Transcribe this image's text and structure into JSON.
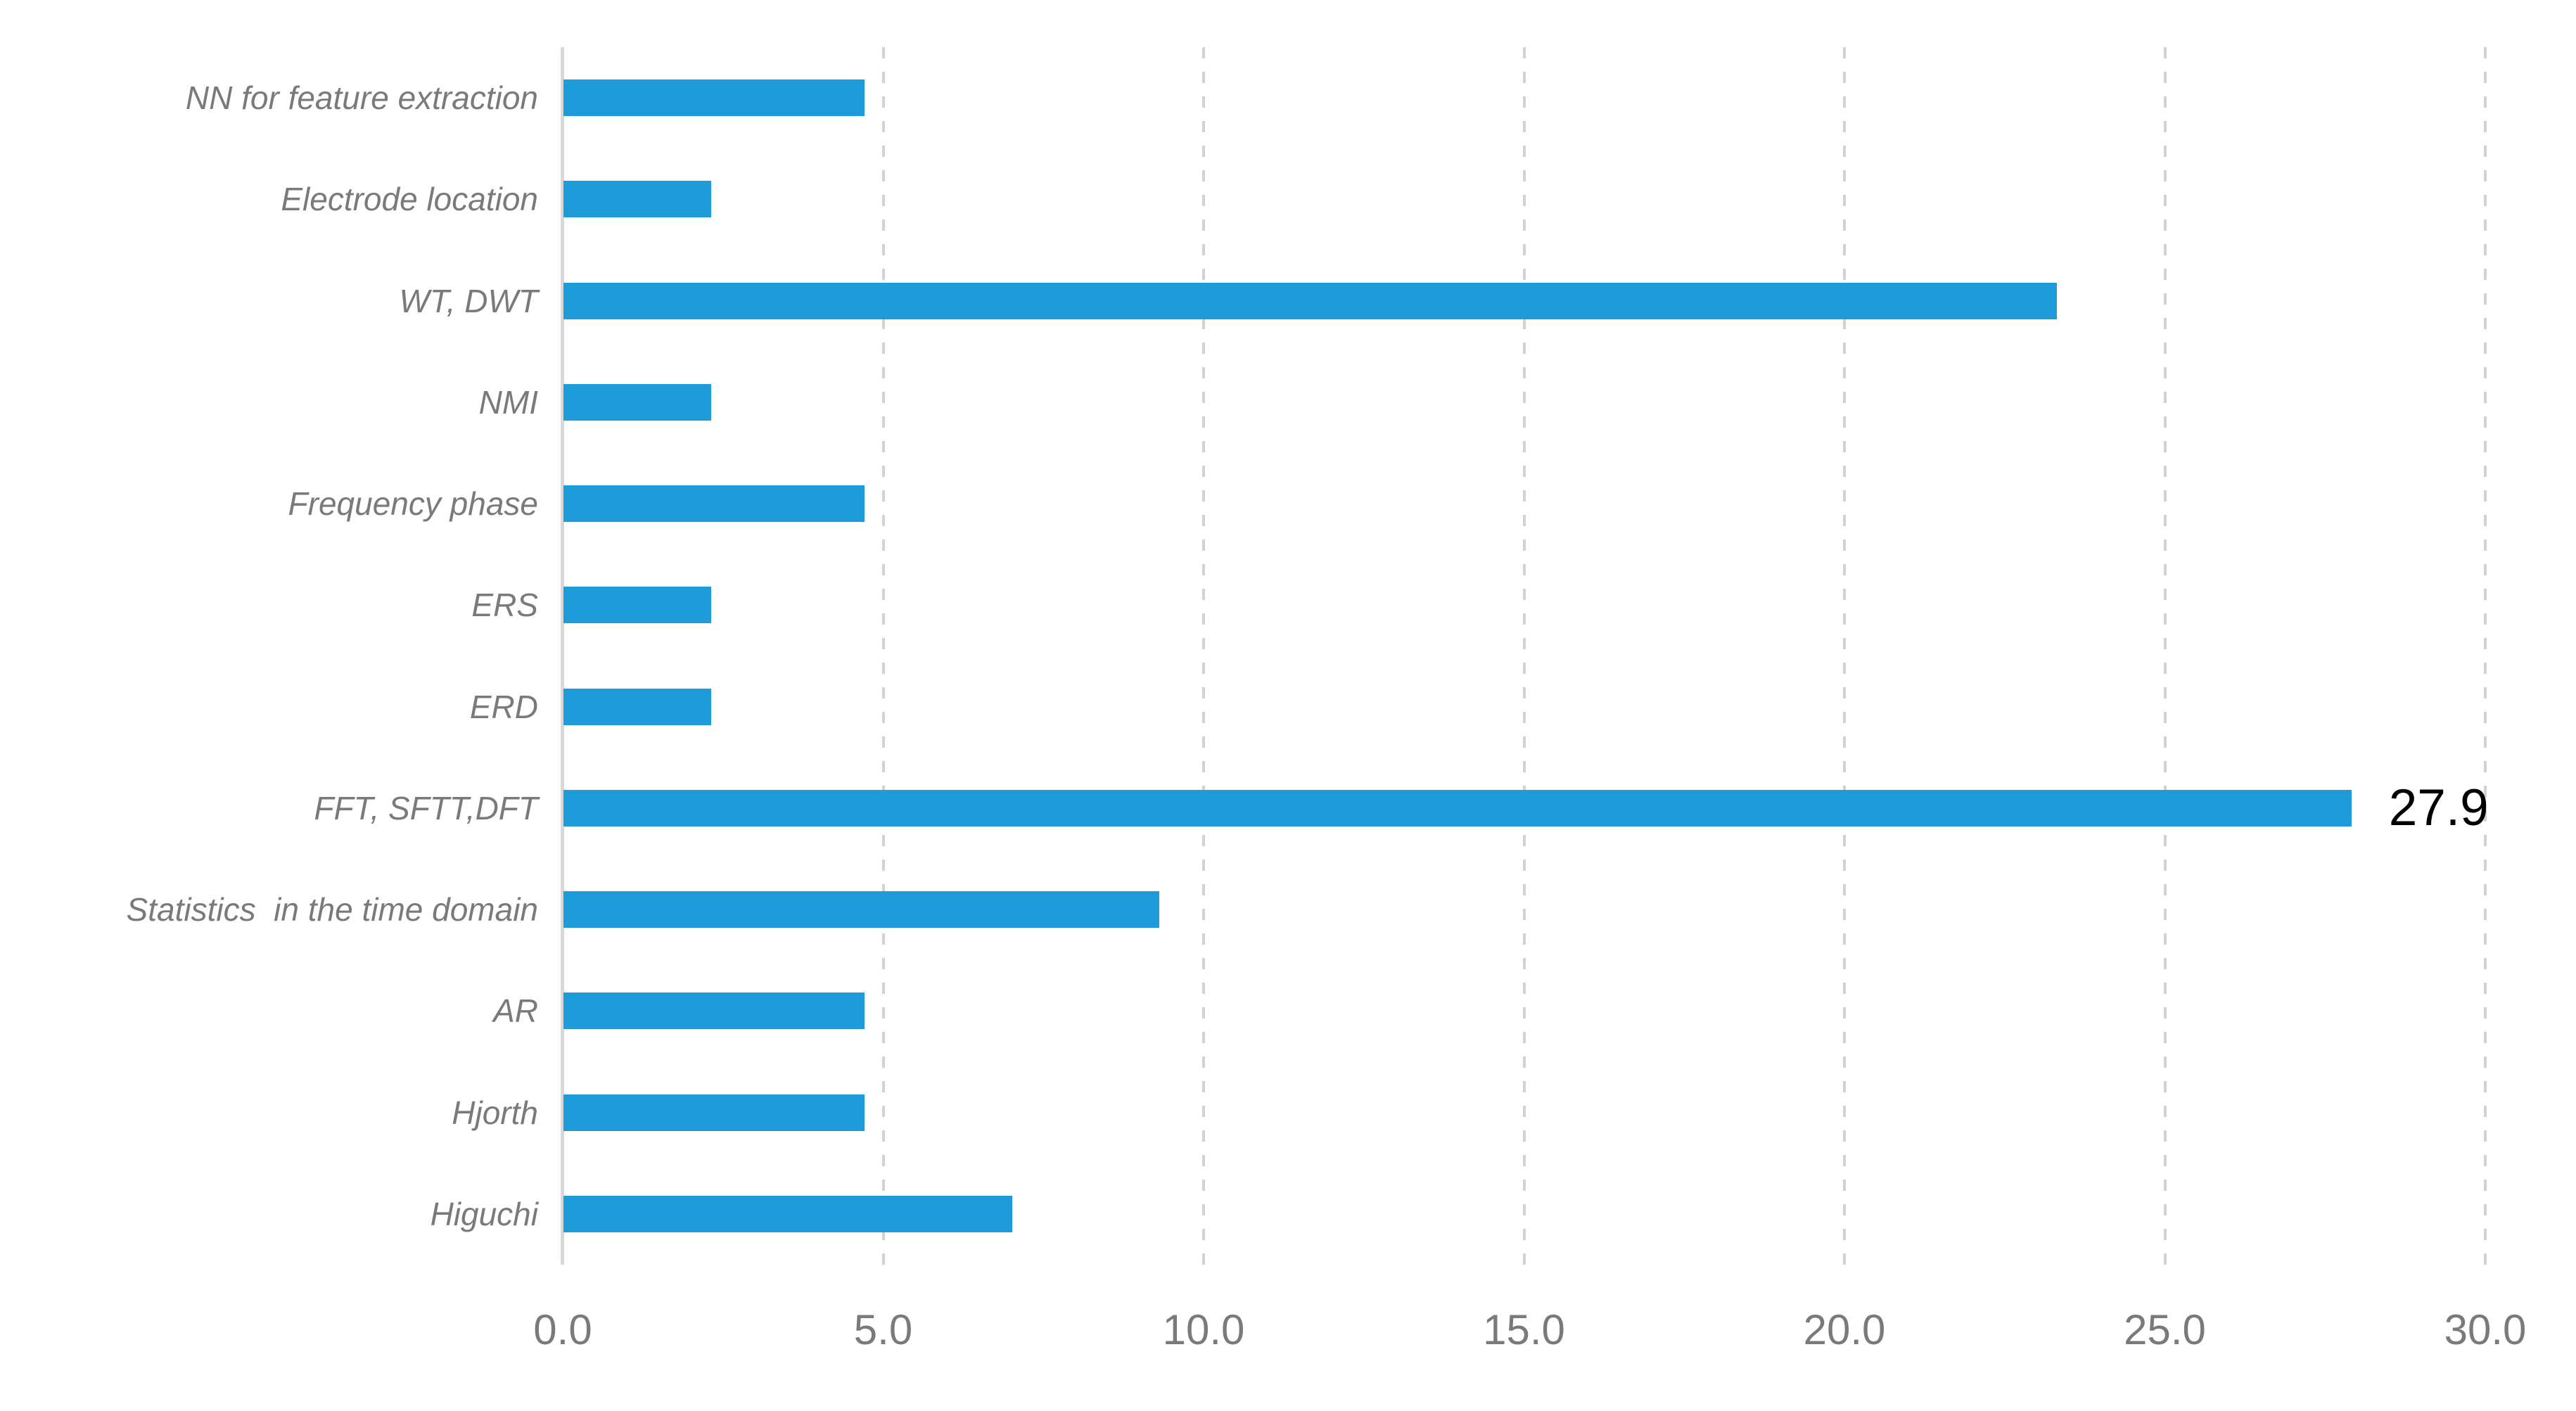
{
  "chart_data": {
    "type": "bar",
    "orientation": "horizontal",
    "title": "",
    "xlabel": "",
    "ylabel": "",
    "categories": [
      "NN for feature extraction",
      "Electrode location",
      "WT, DWT",
      "NMI",
      "Frequency phase",
      "ERS",
      "ERD",
      "FFT, SFTT,DFT",
      "Statistics  in the time domain",
      "AR",
      "Hjorth",
      "Higuchi"
    ],
    "values": [
      4.7,
      2.3,
      23.3,
      2.3,
      4.7,
      2.3,
      2.3,
      27.9,
      9.3,
      4.7,
      4.7,
      7.0
    ],
    "data_labels": [
      null,
      null,
      null,
      null,
      null,
      null,
      null,
      "27.9",
      null,
      null,
      null,
      null
    ],
    "xlim": [
      0,
      30
    ],
    "xticks": [
      0,
      5,
      10,
      15,
      20,
      25,
      30
    ],
    "xtick_labels": [
      "0.0",
      "5.0",
      "10.0",
      "15.0",
      "20.0",
      "25.0",
      "30.0"
    ],
    "grid": "vertical-dashed",
    "legend": "none",
    "colors": {
      "bar": "#1e9cd9",
      "gridline": "#d2d2d2",
      "axis_line": "#d9d9d9",
      "category_label": "#7a7a7a",
      "tick_label": "#7a7a7a",
      "data_label": "#000000",
      "background": "#ffffff"
    }
  }
}
